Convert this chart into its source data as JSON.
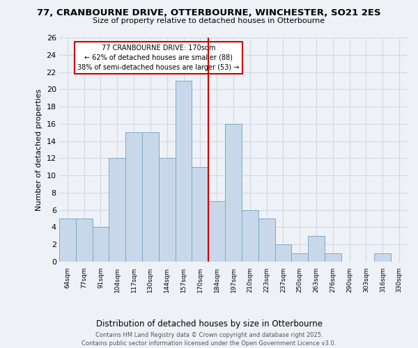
{
  "title": "77, CRANBOURNE DRIVE, OTTERBOURNE, WINCHESTER, SO21 2ES",
  "subtitle": "Size of property relative to detached houses in Otterbourne",
  "xlabel": "Distribution of detached houses by size in Otterbourne",
  "ylabel": "Number of detached properties",
  "bin_labels": [
    "64sqm",
    "77sqm",
    "91sqm",
    "104sqm",
    "117sqm",
    "130sqm",
    "144sqm",
    "157sqm",
    "170sqm",
    "184sqm",
    "197sqm",
    "210sqm",
    "223sqm",
    "237sqm",
    "250sqm",
    "263sqm",
    "276sqm",
    "290sqm",
    "303sqm",
    "316sqm",
    "330sqm"
  ],
  "counts": [
    5,
    5,
    4,
    12,
    15,
    15,
    12,
    21,
    11,
    7,
    16,
    6,
    5,
    2,
    1,
    3,
    1,
    0,
    0,
    1,
    0
  ],
  "bar_color": "#c8d8ea",
  "bar_edge_color": "#7aaac8",
  "property_bin_index": 8,
  "property_line_color": "#cc0000",
  "annotation_title": "77 CRANBOURNE DRIVE: 170sqm",
  "annotation_line1": "← 62% of detached houses are smaller (88)",
  "annotation_line2": "38% of semi-detached houses are larger (53) →",
  "annotation_box_color": "white",
  "annotation_box_edge_color": "#cc0000",
  "ylim": [
    0,
    26
  ],
  "yticks": [
    0,
    2,
    4,
    6,
    8,
    10,
    12,
    14,
    16,
    18,
    20,
    22,
    24,
    26
  ],
  "footer1": "Contains HM Land Registry data © Crown copyright and database right 2025.",
  "footer2": "Contains public sector information licensed under the Open Government Licence v3.0.",
  "bg_color": "#eef2f7",
  "grid_color": "#d0d8e4"
}
